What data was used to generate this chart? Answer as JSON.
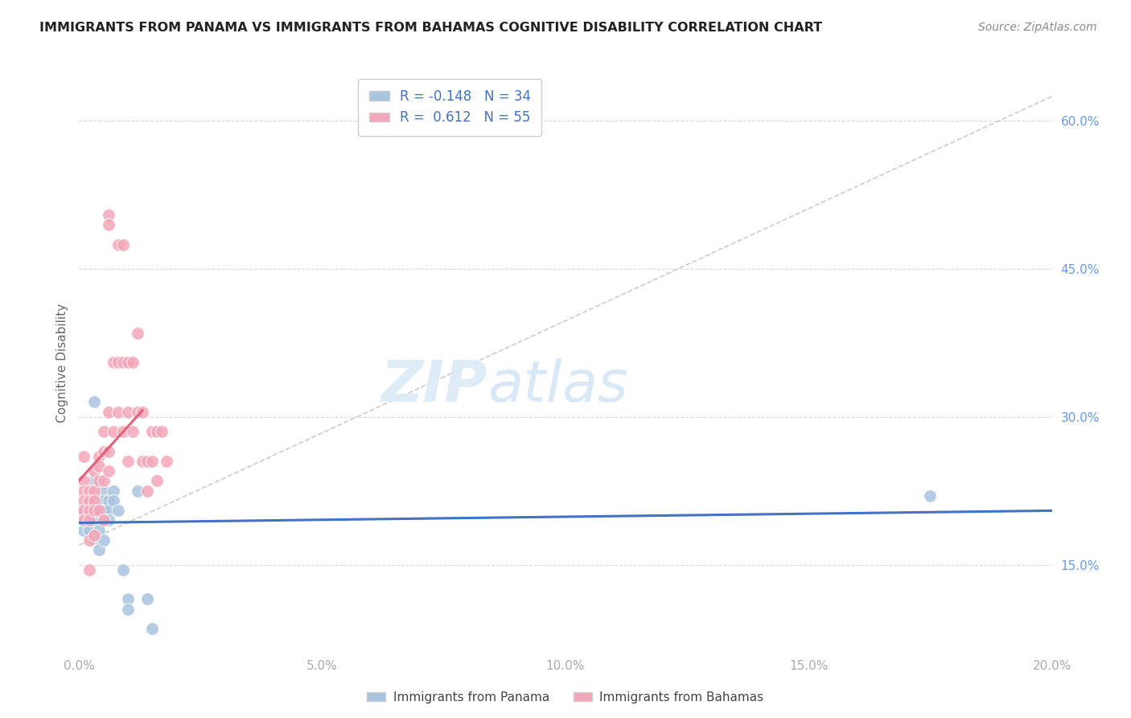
{
  "title": "IMMIGRANTS FROM PANAMA VS IMMIGRANTS FROM BAHAMAS COGNITIVE DISABILITY CORRELATION CHART",
  "source": "Source: ZipAtlas.com",
  "ylabel": "Cognitive Disability",
  "yticks": [
    "15.0%",
    "30.0%",
    "45.0%",
    "60.0%"
  ],
  "ytick_vals": [
    0.15,
    0.3,
    0.45,
    0.6
  ],
  "xticks": [
    "0.0%",
    "5.0%",
    "10.0%",
    "15.0%",
    "20.0%"
  ],
  "xtick_vals": [
    0.0,
    0.05,
    0.1,
    0.15,
    0.2
  ],
  "xlim": [
    0.0,
    0.2
  ],
  "ylim": [
    0.06,
    0.65
  ],
  "panama_color": "#a8c4e0",
  "bahamas_color": "#f4a7b9",
  "panama_line_color": "#4472c4",
  "bahamas_line_color": "#e0607a",
  "ref_line_color": "#c0c0c0",
  "watermark_color": "#daeaf7",
  "panama_R": -0.148,
  "bahamas_R": 0.612,
  "panama_N": 34,
  "bahamas_N": 55,
  "panama_x": [
    0.001,
    0.001,
    0.001,
    0.002,
    0.002,
    0.002,
    0.002,
    0.003,
    0.003,
    0.003,
    0.003,
    0.003,
    0.004,
    0.004,
    0.004,
    0.004,
    0.005,
    0.005,
    0.005,
    0.005,
    0.005,
    0.006,
    0.006,
    0.006,
    0.007,
    0.007,
    0.008,
    0.009,
    0.01,
    0.01,
    0.012,
    0.014,
    0.015,
    0.175
  ],
  "panama_y": [
    0.205,
    0.195,
    0.185,
    0.215,
    0.205,
    0.195,
    0.185,
    0.315,
    0.235,
    0.205,
    0.195,
    0.175,
    0.215,
    0.205,
    0.185,
    0.165,
    0.225,
    0.215,
    0.205,
    0.195,
    0.175,
    0.215,
    0.205,
    0.195,
    0.225,
    0.215,
    0.205,
    0.145,
    0.115,
    0.105,
    0.225,
    0.115,
    0.085,
    0.22
  ],
  "bahamas_x": [
    0.001,
    0.001,
    0.001,
    0.001,
    0.001,
    0.001,
    0.002,
    0.002,
    0.002,
    0.002,
    0.002,
    0.002,
    0.003,
    0.003,
    0.003,
    0.003,
    0.003,
    0.004,
    0.004,
    0.004,
    0.004,
    0.005,
    0.005,
    0.005,
    0.005,
    0.006,
    0.006,
    0.006,
    0.006,
    0.006,
    0.007,
    0.007,
    0.008,
    0.008,
    0.008,
    0.009,
    0.009,
    0.009,
    0.01,
    0.01,
    0.01,
    0.011,
    0.011,
    0.012,
    0.012,
    0.013,
    0.013,
    0.014,
    0.014,
    0.015,
    0.015,
    0.016,
    0.016,
    0.017,
    0.018
  ],
  "bahamas_y": [
    0.26,
    0.235,
    0.225,
    0.215,
    0.205,
    0.195,
    0.225,
    0.215,
    0.205,
    0.195,
    0.175,
    0.145,
    0.245,
    0.225,
    0.215,
    0.205,
    0.18,
    0.26,
    0.25,
    0.235,
    0.205,
    0.285,
    0.265,
    0.235,
    0.195,
    0.505,
    0.495,
    0.305,
    0.265,
    0.245,
    0.355,
    0.285,
    0.475,
    0.355,
    0.305,
    0.475,
    0.355,
    0.285,
    0.355,
    0.305,
    0.255,
    0.355,
    0.285,
    0.385,
    0.305,
    0.305,
    0.255,
    0.255,
    0.225,
    0.285,
    0.255,
    0.285,
    0.235,
    0.285,
    0.255
  ]
}
